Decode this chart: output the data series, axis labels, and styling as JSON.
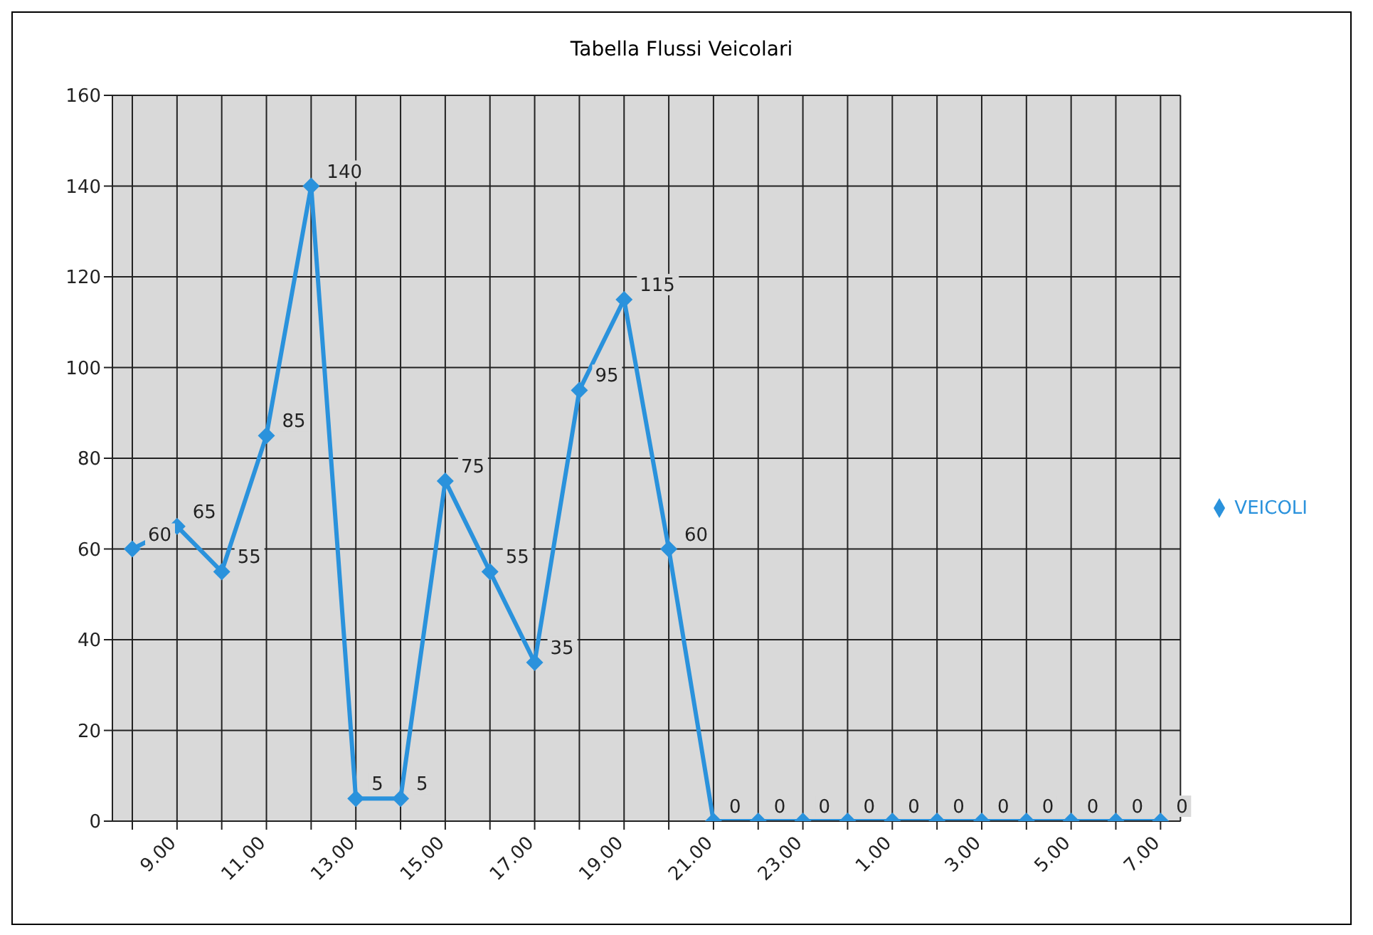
{
  "chart_data": {
    "type": "line",
    "title": "Tabella Flussi Veicolari",
    "categories": [
      null,
      "9.00",
      null,
      "11.00",
      null,
      "13.00",
      null,
      "15.00",
      null,
      "17.00",
      null,
      "19.00",
      null,
      "21.00",
      null,
      "23.00",
      null,
      "1.00",
      null,
      "3.00",
      null,
      "5.00",
      null,
      "7.00"
    ],
    "series": [
      {
        "name": "VEICOLI",
        "color": "#2a92dc",
        "values": [
          60,
          65,
          55,
          85,
          140,
          5,
          5,
          75,
          55,
          35,
          95,
          115,
          60,
          0,
          0,
          0,
          0,
          0,
          0,
          0,
          0,
          0,
          0,
          0
        ]
      }
    ],
    "ylim": [
      0,
      160
    ],
    "yticks": [
      0,
      20,
      40,
      60,
      80,
      100,
      120,
      140,
      160
    ],
    "grid": true,
    "legend": "right",
    "marker": "diamond",
    "line_style": "solid",
    "data_labels": true
  }
}
